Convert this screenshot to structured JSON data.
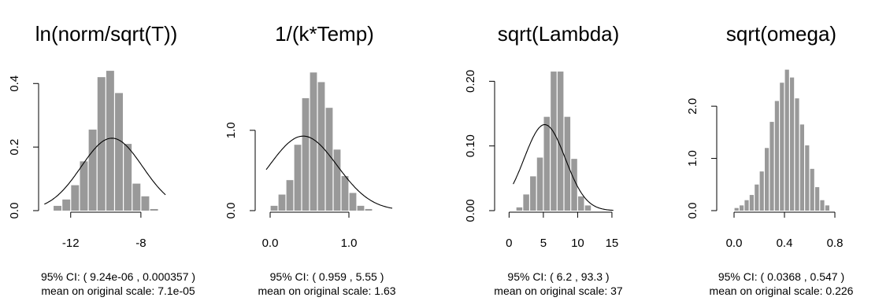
{
  "chart_data": [
    {
      "type": "bar",
      "title": "ln(norm/sqrt(T))",
      "xticks": [
        -12,
        -8
      ],
      "yticks": [
        0.0,
        0.2,
        0.4
      ],
      "ytick_labels": [
        "0.0",
        "0.2",
        "0.4"
      ],
      "xlim": [
        -13.2,
        -6.2
      ],
      "ylim": [
        0,
        0.46
      ],
      "bin_start": -13.0,
      "bin_width": 0.5,
      "values": [
        0.015,
        0.035,
        0.08,
        0.155,
        0.255,
        0.42,
        0.44,
        0.37,
        0.21,
        0.085,
        0.045,
        0.005
      ],
      "curve": {
        "mean": -9.65,
        "sd": 1.75,
        "xmin": -13.5,
        "xmax": -6.6
      },
      "ci_label": "95% CI: ( 9.24e-06 ,  0.000357 )",
      "mean_label": "mean on original scale: 7.1e-05"
    },
    {
      "type": "bar",
      "title": "1/(k*Temp)",
      "xticks": [
        0.0,
        1.0
      ],
      "xtick_labels": [
        "0.0",
        "1.0"
      ],
      "yticks": [
        0.0,
        1.0
      ],
      "ytick_labels": [
        "0.0",
        "1.0"
      ],
      "xlim": [
        -0.05,
        1.55
      ],
      "ylim": [
        0,
        1.82
      ],
      "bin_start": 0.0,
      "bin_width": 0.1,
      "values": [
        0.06,
        0.2,
        0.38,
        0.82,
        1.4,
        1.72,
        1.6,
        1.28,
        0.76,
        0.43,
        0.22,
        0.06,
        0.02
      ],
      "curve": {
        "mean": 0.42,
        "sd": 0.43,
        "xmin": -0.05,
        "xmax": 1.55
      },
      "ci_label": "95% CI: ( 0.959 ,  5.55 )",
      "mean_label": "mean on original scale: 1.63"
    },
    {
      "type": "bar",
      "title": "sqrt(Lambda)",
      "xticks": [
        0,
        5,
        10,
        15
      ],
      "yticks": [
        0.0,
        0.1,
        0.2
      ],
      "ytick_labels": [
        "0.00",
        "0.10",
        "0.20"
      ],
      "xlim": [
        -0.5,
        16.5
      ],
      "ylim": [
        0,
        0.226
      ],
      "bin_start": 1.0,
      "bin_width": 1.0,
      "values": [
        0.005,
        0.025,
        0.053,
        0.082,
        0.145,
        0.215,
        0.215,
        0.145,
        0.08,
        0.022,
        0.008
      ],
      "curve": {
        "mean": 5.2,
        "sd": 3.0,
        "xmin": 0.6,
        "xmax": 15.2
      },
      "ci_label": "95% CI: ( 6.2 ,  93.3 )",
      "mean_label": "mean on original scale: 37"
    },
    {
      "type": "bar",
      "title": "sqrt(omega)",
      "xticks": [
        0.0,
        0.4,
        0.8
      ],
      "xtick_labels": [
        "0.0",
        "0.4",
        "0.8"
      ],
      "yticks": [
        0.0,
        1.0,
        2.0
      ],
      "ytick_labels": [
        "0.0",
        "1.0",
        "2.0"
      ],
      "xlim": [
        -0.05,
        0.9
      ],
      "ylim": [
        0,
        2.8
      ],
      "bin_start": 0.0,
      "bin_width": 0.04,
      "values": [
        0.05,
        0.1,
        0.2,
        0.3,
        0.5,
        0.75,
        1.2,
        1.7,
        2.1,
        2.45,
        2.7,
        2.55,
        2.15,
        1.65,
        1.25,
        0.8,
        0.45,
        0.2,
        0.1
      ],
      "ci_label": "95% CI: ( 0.0368 ,  0.547 )",
      "mean_label": "mean on original scale: 0.226"
    }
  ]
}
